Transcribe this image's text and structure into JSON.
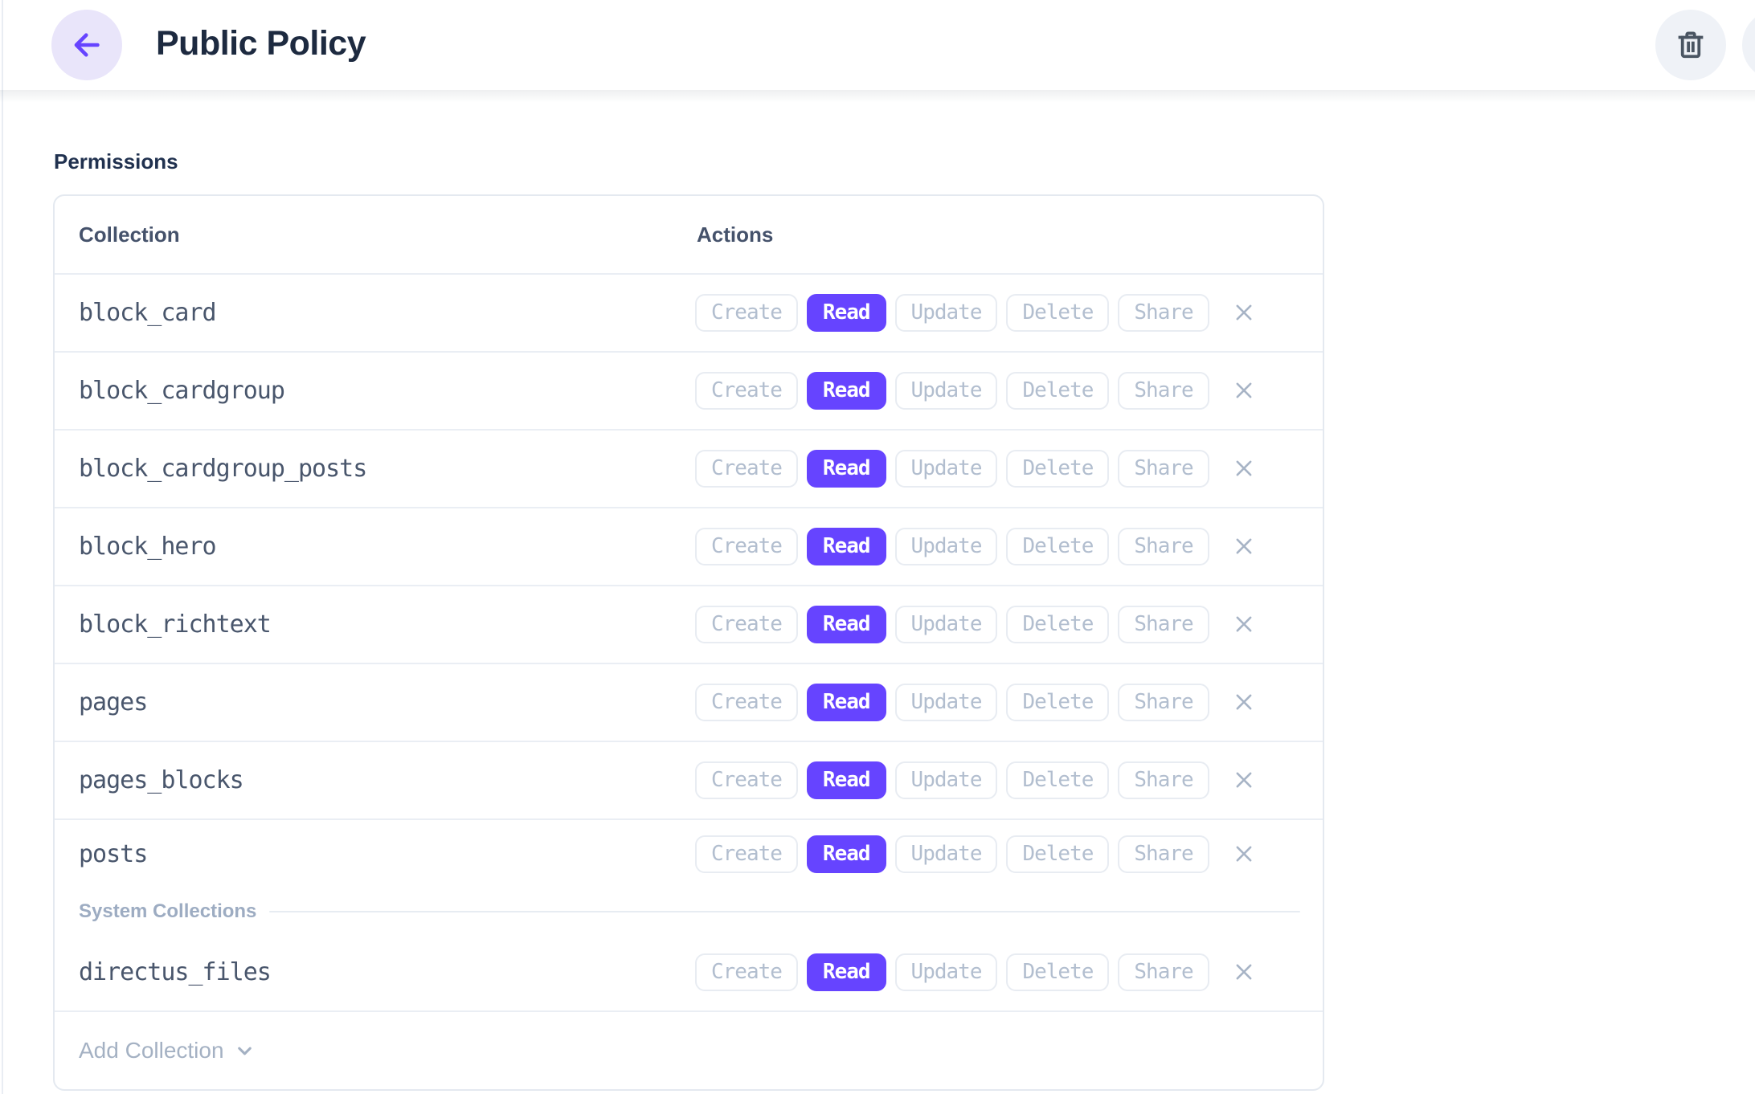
{
  "header": {
    "title": "Public Policy",
    "back_icon": "arrow-left-icon",
    "delete_icon": "trash-icon"
  },
  "section": {
    "label": "Permissions"
  },
  "table": {
    "columns": {
      "collection": "Collection",
      "actions": "Actions"
    },
    "action_labels": [
      "Create",
      "Read",
      "Update",
      "Delete",
      "Share"
    ],
    "rows": [
      {
        "collection": "block_card",
        "active": [
          "Read"
        ]
      },
      {
        "collection": "block_cardgroup",
        "active": [
          "Read"
        ]
      },
      {
        "collection": "block_cardgroup_posts",
        "active": [
          "Read"
        ]
      },
      {
        "collection": "block_hero",
        "active": [
          "Read"
        ]
      },
      {
        "collection": "block_richtext",
        "active": [
          "Read"
        ]
      },
      {
        "collection": "pages",
        "active": [
          "Read"
        ]
      },
      {
        "collection": "pages_blocks",
        "active": [
          "Read"
        ]
      },
      {
        "collection": "posts",
        "active": [
          "Read"
        ]
      }
    ],
    "system_divider_label": "System Collections",
    "system_rows": [
      {
        "collection": "directus_files",
        "active": [
          "Read"
        ]
      }
    ],
    "add_collection_label": "Add Collection",
    "remove_row_icon": "close-x-icon",
    "add_dropdown_icon": "chevron-down-icon"
  },
  "colors": {
    "accent": "#6644FF",
    "accent_soft": "#E9E5FA",
    "title_text": "#1D2A40",
    "mono_text": "#49566C",
    "muted_text": "#B2BECF",
    "divider_text": "#9DACC2",
    "border": "#E4E9F0",
    "row_border": "#EAEEF4",
    "icon_gray": "#4A5562",
    "circle_gray": "#EFF2F7"
  }
}
